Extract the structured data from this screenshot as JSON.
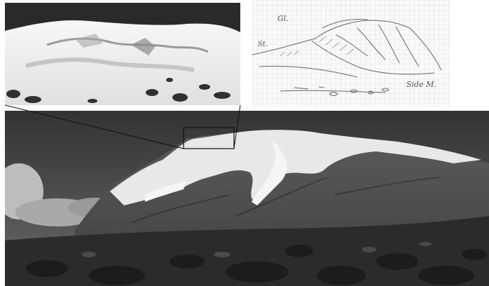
{
  "figure": {
    "sketch_labels": {
      "top": "Gl.",
      "left": "St.",
      "right": "Side M."
    }
  }
}
